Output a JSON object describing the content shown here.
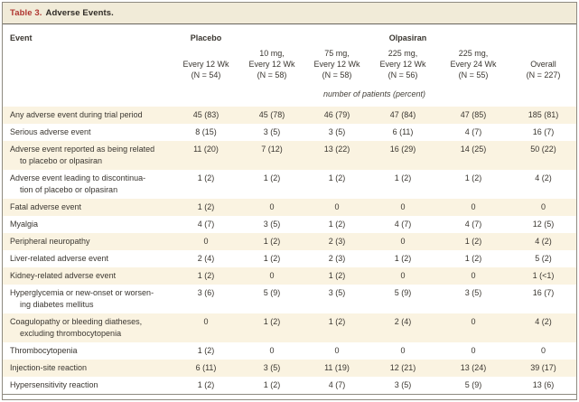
{
  "title": {
    "label": "Table 3.",
    "text": "Adverse Events."
  },
  "header": {
    "event_label": "Event",
    "groups": [
      {
        "label": "Placebo",
        "span": 1
      },
      {
        "label": "Olpasiran",
        "span": 5
      }
    ],
    "columns": [
      {
        "lines": [
          "Every 12 Wk",
          "(N = 54)"
        ]
      },
      {
        "lines": [
          "10 mg,",
          "Every 12 Wk",
          "(N = 58)"
        ]
      },
      {
        "lines": [
          "75 mg,",
          "Every 12 Wk",
          "(N = 58)"
        ]
      },
      {
        "lines": [
          "225 mg,",
          "Every 12 Wk",
          "(N = 56)"
        ]
      },
      {
        "lines": [
          "225 mg,",
          "Every 24 Wk",
          "(N = 55)"
        ]
      },
      {
        "lines": [
          "Overall",
          "(N = 227)"
        ]
      }
    ],
    "unit_note": "number of patients (percent)"
  },
  "rows": [
    {
      "label_lines": [
        "Any adverse event during trial period"
      ],
      "values": [
        "45 (83)",
        "45 (78)",
        "46 (79)",
        "47 (84)",
        "47 (85)",
        "185 (81)"
      ]
    },
    {
      "label_lines": [
        "Serious adverse event"
      ],
      "values": [
        "8 (15)",
        "3 (5)",
        "3 (5)",
        "6 (11)",
        "4 (7)",
        "16 (7)"
      ]
    },
    {
      "label_lines": [
        "Adverse event reported as being related",
        "to placebo or olpasiran"
      ],
      "values": [
        "11 (20)",
        "7 (12)",
        "13 (22)",
        "16 (29)",
        "14 (25)",
        "50 (22)"
      ]
    },
    {
      "label_lines": [
        "Adverse event leading to discontinua-",
        "tion of placebo or olpasiran"
      ],
      "values": [
        "1 (2)",
        "1 (2)",
        "1 (2)",
        "1 (2)",
        "1 (2)",
        "4 (2)"
      ]
    },
    {
      "label_lines": [
        "Fatal adverse event"
      ],
      "values": [
        "1 (2)",
        "0",
        "0",
        "0",
        "0",
        "0"
      ]
    },
    {
      "label_lines": [
        "Myalgia"
      ],
      "values": [
        "4 (7)",
        "3 (5)",
        "1 (2)",
        "4 (7)",
        "4 (7)",
        "12 (5)"
      ]
    },
    {
      "label_lines": [
        "Peripheral neuropathy"
      ],
      "values": [
        "0",
        "1 (2)",
        "2 (3)",
        "0",
        "1 (2)",
        "4 (2)"
      ]
    },
    {
      "label_lines": [
        "Liver-related adverse event"
      ],
      "values": [
        "2 (4)",
        "1 (2)",
        "2 (3)",
        "1 (2)",
        "1 (2)",
        "5 (2)"
      ]
    },
    {
      "label_lines": [
        "Kidney-related adverse event"
      ],
      "values": [
        "1 (2)",
        "0",
        "1 (2)",
        "0",
        "0",
        "1 (<1)"
      ]
    },
    {
      "label_lines": [
        "Hyperglycemia or new-onset or worsen-",
        "ing diabetes mellitus"
      ],
      "values": [
        "3 (6)",
        "5 (9)",
        "3 (5)",
        "5 (9)",
        "3 (5)",
        "16 (7)"
      ]
    },
    {
      "label_lines": [
        "Coagulopathy or bleeding diatheses,",
        "excluding thrombocytopenia"
      ],
      "values": [
        "0",
        "1 (2)",
        "1 (2)",
        "2 (4)",
        "0",
        "4 (2)"
      ]
    },
    {
      "label_lines": [
        "Thrombocytopenia"
      ],
      "values": [
        "1 (2)",
        "0",
        "0",
        "0",
        "0",
        "0"
      ]
    },
    {
      "label_lines": [
        "Injection-site reaction"
      ],
      "values": [
        "6 (11)",
        "3 (5)",
        "11 (19)",
        "12 (21)",
        "13 (24)",
        "39 (17)"
      ]
    },
    {
      "label_lines": [
        "Hypersensitivity reaction"
      ],
      "values": [
        "1 (2)",
        "1 (2)",
        "4 (7)",
        "3 (5)",
        "5 (9)",
        "13 (6)"
      ]
    }
  ],
  "colors": {
    "accent_red": "#af3530",
    "title_bar_bg": "#f1ebd8",
    "row_shade": "#faf3e1",
    "text": "#3a3630",
    "border": "#8e8a80"
  }
}
